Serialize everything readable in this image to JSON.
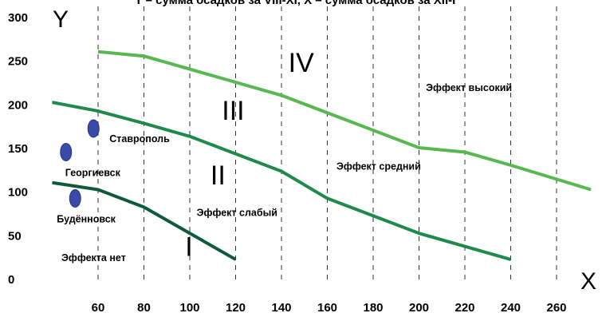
{
  "chart_data": {
    "type": "line",
    "title": "Y – сумма осадков за VIII-XI, X – сумма осадков за XII-I",
    "ylabel": "Y",
    "xlabel": "X",
    "xlim": [
      40,
      275
    ],
    "ylim": [
      0,
      300
    ],
    "grid": "vertical dashed",
    "x_ticks": [
      60,
      80,
      100,
      120,
      140,
      160,
      180,
      200,
      220,
      240,
      260
    ],
    "y_ticks": [
      0,
      50,
      100,
      150,
      200,
      250,
      300
    ],
    "colors": {
      "line1": "#0f5a3a",
      "line2": "#1f8a4c",
      "line3": "#56b84f",
      "points": "#3a4aa8"
    },
    "series": [
      {
        "values_xy": [
          [
            40,
            110
          ],
          [
            60,
            102
          ],
          [
            80,
            82
          ],
          [
            100,
            52
          ],
          [
            120,
            22
          ]
        ]
      },
      {
        "values_xy": [
          [
            40,
            202
          ],
          [
            60,
            192
          ],
          [
            80,
            178
          ],
          [
            100,
            163
          ],
          [
            120,
            143
          ],
          [
            140,
            123
          ],
          [
            160,
            92
          ],
          [
            180,
            72
          ],
          [
            200,
            52
          ],
          [
            220,
            37
          ],
          [
            240,
            22
          ]
        ]
      },
      {
        "values_xy": [
          [
            60,
            260
          ],
          [
            80,
            255
          ],
          [
            100,
            240
          ],
          [
            120,
            225
          ],
          [
            140,
            210
          ],
          [
            160,
            190
          ],
          [
            180,
            170
          ],
          [
            200,
            150
          ],
          [
            220,
            145
          ],
          [
            240,
            130
          ],
          [
            275,
            102
          ]
        ]
      }
    ],
    "points": [
      {
        "label": "Ставрополь",
        "x": 58,
        "y": 172
      },
      {
        "label": "Георгиевск",
        "x": 46,
        "y": 145
      },
      {
        "label": "Будённовск",
        "x": 50,
        "y": 92
      }
    ],
    "annotations": [
      {
        "text": "Эффект высокий",
        "x": 203,
        "y": 215
      },
      {
        "text": "Эффект средний",
        "x": 164,
        "y": 125
      },
      {
        "text": "Эффект слабый",
        "x": 103,
        "y": 72
      },
      {
        "text": "Эффекта нет",
        "x": 44,
        "y": 20
      }
    ],
    "zone_labels": [
      {
        "text": "IV",
        "x": 143,
        "y": 237
      },
      {
        "text": "III",
        "x": 114,
        "y": 182
      },
      {
        "text": "II",
        "x": 109,
        "y": 108
      },
      {
        "text": "I",
        "x": 98,
        "y": 26
      }
    ]
  }
}
